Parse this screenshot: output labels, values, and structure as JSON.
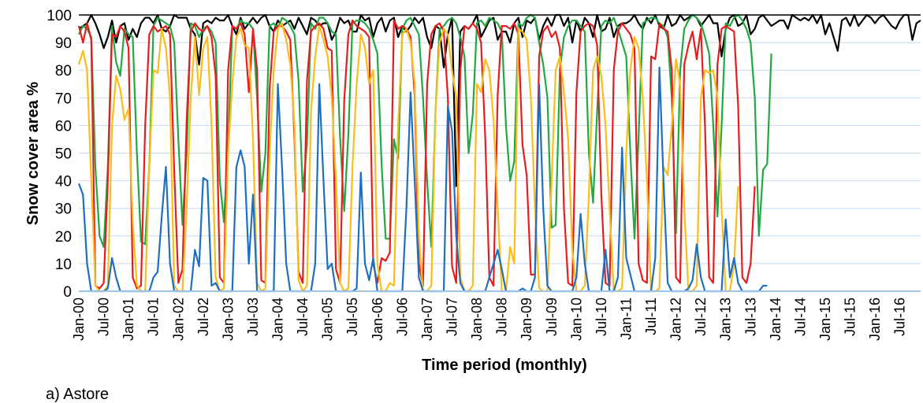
{
  "caption": "a) Astore",
  "chart_data": {
    "type": "line",
    "title": "",
    "xlabel": "Time period (monthly)",
    "ylabel": "Snow cover area %",
    "ylim": [
      0,
      100
    ],
    "yticks": [
      0,
      10,
      20,
      30,
      40,
      50,
      60,
      70,
      80,
      90,
      100
    ],
    "grid": true,
    "legend": "none",
    "x_start": "Jan-00",
    "x_tick_labels": [
      "Jan-00",
      "Jul-00",
      "Jan-01",
      "Jul-01",
      "Jan-02",
      "Jul-02",
      "Jan-03",
      "Jul-03",
      "Jan-04",
      "Jul-04",
      "Jan-05",
      "Jul-05",
      "Jan-06",
      "Jul-06",
      "Jan-07",
      "Jul-07",
      "Jan-08",
      "Jul-08",
      "Jan-09",
      "Jul-09",
      "Jan-10",
      "Jul-10",
      "Jan-11",
      "Jul-11",
      "Jan-12",
      "Jul-12",
      "Jan-13",
      "Jul-13",
      "Jan-14",
      "Jul-14",
      "Jan-15",
      "Jul-15",
      "Jan-16",
      "Jul-16"
    ],
    "series": [
      {
        "color": "#000000",
        "values": [
          95,
          96,
          97,
          100,
          97,
          93,
          88,
          92,
          98,
          90,
          96,
          97,
          91,
          95,
          92,
          97,
          99,
          99,
          97,
          100,
          95,
          94,
          96,
          100,
          99,
          99,
          99,
          95,
          93,
          82,
          97,
          98,
          97,
          99,
          98,
          98,
          100,
          96,
          93,
          99,
          95,
          97,
          99,
          97,
          99,
          100,
          96,
          94,
          98,
          96,
          97,
          98,
          95,
          99,
          96,
          93,
          99,
          98,
          96,
          97,
          97,
          91,
          94,
          99,
          97,
          98,
          94,
          94,
          100,
          98,
          99,
          92,
          97,
          99,
          94,
          98,
          99,
          92,
          96,
          94,
          96,
          99,
          97,
          99,
          92,
          88,
          96,
          95,
          81,
          93,
          99,
          38,
          94,
          96,
          95,
          97,
          100,
          92,
          95,
          98,
          99,
          91,
          94,
          94,
          90,
          97,
          99,
          92,
          98,
          97,
          99,
          91,
          96,
          99,
          96,
          100,
          100,
          96,
          99,
          90,
          98,
          94,
          99,
          97,
          92,
          100,
          94,
          95,
          99,
          92,
          96,
          97,
          97,
          98,
          100,
          97,
          95,
          99,
          97,
          100,
          96,
          95,
          100,
          96,
          97,
          100,
          98,
          99,
          100,
          99,
          96,
          98,
          100,
          97,
          97,
          85,
          95,
          99,
          100,
          96,
          97,
          100,
          93,
          95,
          99,
          100,
          98,
          96,
          97,
          98,
          98,
          95,
          100,
          99,
          98,
          99,
          98,
          100,
          97,
          100,
          93,
          97,
          92,
          87,
          98,
          99,
          96,
          100,
          96,
          98,
          100,
          99,
          97,
          99,
          100,
          98,
          96,
          95,
          98,
          100,
          100,
          91,
          97,
          98
        ]
      },
      {
        "color": "#22a843",
        "values": [
          93,
          96,
          95,
          92,
          45,
          20,
          16,
          45,
          96,
          83,
          78,
          95,
          93,
          92,
          50,
          18,
          17,
          45,
          96,
          99,
          98,
          97,
          96,
          90,
          55,
          24,
          50,
          97,
          96,
          92,
          95,
          96,
          94,
          90,
          40,
          25,
          52,
          96,
          95,
          98,
          97,
          97,
          95,
          70,
          36,
          50,
          96,
          97,
          95,
          99,
          98,
          96,
          93,
          76,
          36,
          53,
          97,
          95,
          99,
          99,
          97,
          94,
          93,
          56,
          29,
          57,
          97,
          98,
          98,
          97,
          95,
          91,
          86,
          46,
          19,
          19,
          55,
          48,
          95,
          98,
          99,
          96,
          93,
          70,
          40,
          16,
          65,
          95,
          96,
          98,
          99,
          97,
          92,
          85,
          50,
          64,
          97,
          98,
          96,
          99,
          98,
          97,
          94,
          60,
          40,
          47,
          97,
          96,
          99,
          100,
          99,
          90,
          82,
          70,
          23,
          24,
          80,
          92,
          96,
          98,
          98,
          96,
          94,
          50,
          32,
          65,
          96,
          98,
          97,
          99,
          95,
          90,
          85,
          50,
          19,
          56,
          97,
          98,
          99,
          99,
          97,
          96,
          92,
          70,
          21,
          80,
          95,
          98,
          100,
          99,
          97,
          92,
          86,
          60,
          27,
          60,
          97,
          96,
          99,
          100,
          98,
          95,
          90,
          70,
          20,
          44,
          46,
          86
        ]
      },
      {
        "color": "#e81c1c",
        "values": [
          96,
          90,
          97,
          91,
          2,
          1,
          3,
          40,
          93,
          92,
          96,
          94,
          88,
          5,
          1,
          2,
          60,
          93,
          96,
          94,
          95,
          96,
          93,
          44,
          3,
          8,
          62,
          94,
          97,
          95,
          94,
          96,
          92,
          78,
          5,
          3,
          80,
          96,
          95,
          97,
          93,
          72,
          95,
          80,
          4,
          3,
          73,
          94,
          96,
          96,
          94,
          91,
          55,
          7,
          3,
          76,
          94,
          96,
          97,
          95,
          88,
          87,
          8,
          3,
          69,
          93,
          98,
          96,
          95,
          94,
          92,
          10,
          3,
          12,
          11,
          14,
          98,
          95,
          96,
          95,
          92,
          71,
          10,
          2,
          75,
          93,
          96,
          97,
          94,
          70,
          9,
          3,
          80,
          96,
          95,
          97,
          95,
          90,
          56,
          5,
          2,
          71,
          96,
          96,
          95,
          97,
          93,
          53,
          42,
          6,
          6,
          85,
          94,
          96,
          92,
          94,
          88,
          30,
          3,
          2,
          72,
          94,
          96,
          97,
          96,
          89,
          35,
          3,
          2,
          80,
          94,
          97,
          95,
          93,
          88,
          10,
          4,
          3,
          85,
          84,
          97,
          95,
          94,
          80,
          5,
          3,
          82,
          89,
          94,
          84,
          95,
          60,
          5,
          3,
          82,
          95,
          96,
          95,
          94,
          67,
          5,
          3,
          10,
          38
        ]
      },
      {
        "color": "#fbbd1c",
        "values": [
          82,
          87,
          80,
          40,
          2,
          0,
          0,
          2,
          60,
          78,
          73,
          62,
          66,
          25,
          2,
          0,
          0,
          45,
          80,
          79,
          95,
          88,
          70,
          2,
          0,
          0,
          30,
          70,
          92,
          71,
          88,
          92,
          60,
          5,
          0,
          1,
          50,
          75,
          92,
          95,
          89,
          88,
          55,
          3,
          0,
          1,
          50,
          80,
          95,
          97,
          91,
          82,
          60,
          4,
          0,
          2,
          65,
          85,
          96,
          91,
          85,
          70,
          40,
          3,
          0,
          1,
          45,
          75,
          93,
          88,
          75,
          80,
          10,
          0,
          0,
          3,
          2,
          60,
          93,
          95,
          90,
          75,
          20,
          0,
          0,
          2,
          65,
          90,
          95,
          93,
          80,
          70,
          5,
          0,
          0,
          2,
          75,
          72,
          84,
          80,
          62,
          30,
          0,
          0,
          16,
          10,
          95,
          94,
          91,
          70,
          30,
          1,
          0,
          0,
          40,
          80,
          85,
          72,
          55,
          15,
          0,
          0,
          2,
          35,
          80,
          85,
          78,
          60,
          30,
          0,
          0,
          1,
          50,
          80,
          92,
          88,
          70,
          40,
          0,
          0,
          1,
          45,
          42,
          60,
          84,
          75,
          30,
          0,
          0,
          2,
          70,
          80,
          79,
          80,
          70,
          30,
          0,
          0,
          10,
          38
        ]
      },
      {
        "color": "#1f6fc0",
        "values": [
          39,
          35,
          10,
          0,
          0,
          0,
          0,
          1,
          12,
          5,
          0,
          0,
          0,
          0,
          0,
          0,
          0,
          0,
          5,
          7,
          27,
          45,
          10,
          0,
          0,
          0,
          0,
          0,
          15,
          9,
          41,
          40,
          2,
          3,
          0,
          0,
          0,
          0,
          45,
          51,
          45,
          10,
          35,
          0,
          0,
          0,
          0,
          0,
          75,
          45,
          10,
          0,
          0,
          0,
          0,
          0,
          0,
          10,
          75,
          40,
          8,
          10,
          0,
          0,
          0,
          0,
          0,
          1,
          43,
          10,
          4,
          12,
          0,
          0,
          0,
          0,
          0,
          0,
          0,
          30,
          72,
          40,
          5,
          0,
          0,
          0,
          0,
          0,
          0,
          67,
          58,
          20,
          3,
          0,
          0,
          0,
          0,
          0,
          0,
          5,
          10,
          15,
          8,
          0,
          0,
          0,
          0,
          1,
          0,
          0,
          5,
          75,
          30,
          2,
          0,
          0,
          0,
          0,
          0,
          0,
          5,
          28,
          10,
          0,
          0,
          0,
          0,
          15,
          0,
          0,
          5,
          52,
          12,
          6,
          0,
          0,
          0,
          0,
          0,
          12,
          81,
          40,
          3,
          0,
          0,
          0,
          0,
          1,
          4,
          17,
          5,
          0,
          0,
          0,
          0,
          0,
          26,
          5,
          12,
          3,
          0,
          0,
          0,
          0,
          0,
          2,
          2
        ]
      }
    ]
  }
}
